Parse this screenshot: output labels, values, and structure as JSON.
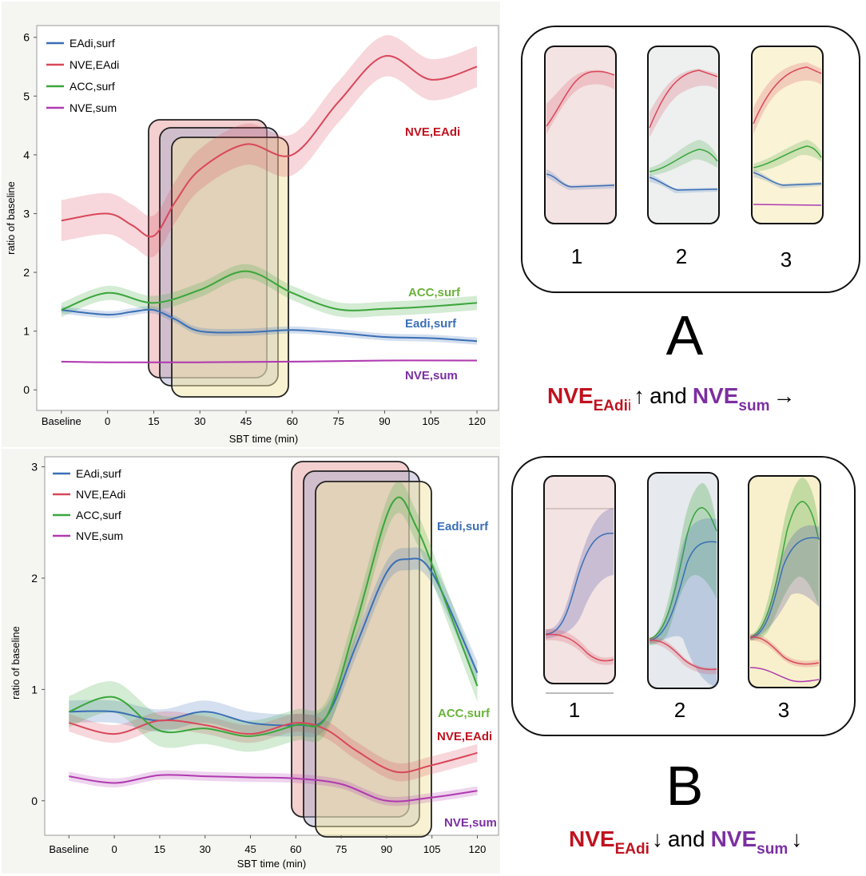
{
  "colors": {
    "eadi": "#3a6fb5",
    "nve_eadi": "#d9475a",
    "acc": "#3aa63a",
    "nve_sum": "#b03ab0",
    "label_red": "#c0121f",
    "label_blue": "#3a6fb5",
    "label_green": "#6ab23a",
    "label_purple": "#7b2fa0",
    "win1": "#e8a0a0",
    "win2": "#a8a8c8",
    "win3": "#f2e6a6"
  },
  "chart_data": [
    {
      "id": "A",
      "type": "line",
      "xlabel": "SBT time (min)",
      "ylabel": "ratio of baseline",
      "x_ticks": [
        "Baseline",
        "0",
        "15",
        "30",
        "45",
        "60",
        "75",
        "90",
        "105",
        "120"
      ],
      "x_tick_values": [
        -15,
        0,
        15,
        30,
        45,
        60,
        75,
        90,
        105,
        120
      ],
      "y_ticks": [
        "0",
        "1",
        "2",
        "3",
        "4",
        "5",
        "6"
      ],
      "xlim": [
        -23,
        127
      ],
      "ylim": [
        -0.35,
        6.2
      ],
      "legend": [
        "EAdi,surf",
        "NVE,EAdi",
        "ACC,surf",
        "NVE,sum"
      ],
      "series": [
        {
          "name": "EAdi,surf",
          "key": "eadi",
          "band": 0.06,
          "x": [
            -15,
            0,
            8,
            15,
            22,
            30,
            45,
            60,
            75,
            90,
            105,
            120
          ],
          "y": [
            1.36,
            1.28,
            1.33,
            1.36,
            1.2,
            1.0,
            0.98,
            1.02,
            0.97,
            0.9,
            0.88,
            0.83
          ]
        },
        {
          "name": "NVE,EAdi",
          "key": "nve_eadi",
          "band": 0.35,
          "x": [
            -15,
            0,
            8,
            15,
            22,
            30,
            45,
            60,
            75,
            90,
            105,
            120
          ],
          "y": [
            2.88,
            3.0,
            2.8,
            2.62,
            3.2,
            3.75,
            4.18,
            4.0,
            4.9,
            5.68,
            5.28,
            5.5
          ]
        },
        {
          "name": "ACC,surf",
          "key": "acc",
          "band": 0.12,
          "x": [
            -15,
            0,
            15,
            30,
            45,
            60,
            75,
            90,
            105,
            120
          ],
          "y": [
            1.36,
            1.65,
            1.48,
            1.7,
            2.02,
            1.65,
            1.37,
            1.38,
            1.42,
            1.48
          ]
        },
        {
          "name": "NVE,sum",
          "key": "nve_sum",
          "band": 0.015,
          "x": [
            -15,
            0,
            30,
            60,
            90,
            120
          ],
          "y": [
            0.48,
            0.47,
            0.47,
            0.48,
            0.5,
            0.5
          ]
        }
      ],
      "annotations": [
        "NVE,EAdi",
        "ACC,surf",
        "Eadi,surf",
        "NVE,sum"
      ]
    },
    {
      "id": "B",
      "type": "line",
      "xlabel": "SBT time (min)",
      "ylabel": "ratio of baseline",
      "x_ticks": [
        "Baseline",
        "0",
        "15",
        "30",
        "45",
        "60",
        "75",
        "90",
        "105",
        "120"
      ],
      "x_tick_values": [
        -15,
        0,
        15,
        30,
        45,
        60,
        75,
        90,
        105,
        120
      ],
      "y_ticks": [
        "0",
        "1",
        "2",
        "3"
      ],
      "xlim": [
        -23,
        127
      ],
      "ylim": [
        -0.31,
        3.09
      ],
      "legend": [
        "EAdi,surf",
        "NVE,EAdi",
        "ACC,surf",
        "NVE,sum"
      ],
      "series": [
        {
          "name": "EAdi,surf",
          "key": "eadi",
          "band": 0.1,
          "x": [
            -15,
            0,
            15,
            30,
            45,
            60,
            70,
            80,
            90,
            97,
            105,
            120
          ],
          "y": [
            0.8,
            0.8,
            0.72,
            0.8,
            0.7,
            0.68,
            0.75,
            1.4,
            2.05,
            2.17,
            2.05,
            1.15
          ]
        },
        {
          "name": "NVE,EAdi",
          "key": "nve_eadi",
          "band": 0.08,
          "x": [
            -15,
            0,
            15,
            30,
            45,
            60,
            70,
            80,
            93,
            105,
            120
          ],
          "y": [
            0.7,
            0.6,
            0.72,
            0.68,
            0.6,
            0.7,
            0.64,
            0.45,
            0.26,
            0.32,
            0.43
          ]
        },
        {
          "name": "ACC,surf",
          "key": "acc",
          "band": 0.14,
          "x": [
            -15,
            0,
            15,
            30,
            45,
            60,
            70,
            80,
            92,
            100,
            110,
            120
          ],
          "y": [
            0.8,
            0.93,
            0.63,
            0.65,
            0.58,
            0.68,
            0.75,
            1.6,
            2.68,
            2.45,
            1.75,
            1.03
          ]
        },
        {
          "name": "NVE,sum",
          "key": "nve_sum",
          "band": 0.04,
          "x": [
            -15,
            0,
            15,
            30,
            45,
            60,
            75,
            90,
            105,
            120
          ],
          "y": [
            0.22,
            0.16,
            0.23,
            0.22,
            0.21,
            0.2,
            0.15,
            0.0,
            0.03,
            0.09
          ]
        }
      ],
      "annotations": [
        "Eadi,surf",
        "ACC,surf",
        "NVE,EAdi",
        "NVE,sum"
      ]
    }
  ],
  "panel_A": {
    "letter": "A",
    "window_numbers": [
      "1",
      "2",
      "3"
    ],
    "caption": {
      "nve": "NVE",
      "eadi_sub": "EAdi",
      "eadi_sub_tail": "i",
      "arrow1": "↑",
      "and": "and",
      "sum_sub": "sum",
      "arrow2": "→"
    }
  },
  "panel_B": {
    "letter": "B",
    "window_numbers": [
      "1",
      "2",
      "3"
    ],
    "caption": {
      "nve": "NVE",
      "eadi_sub": "EAdi",
      "arrow1": "↓",
      "and": "and",
      "sum_sub": "sum",
      "arrow2": "↓"
    }
  }
}
